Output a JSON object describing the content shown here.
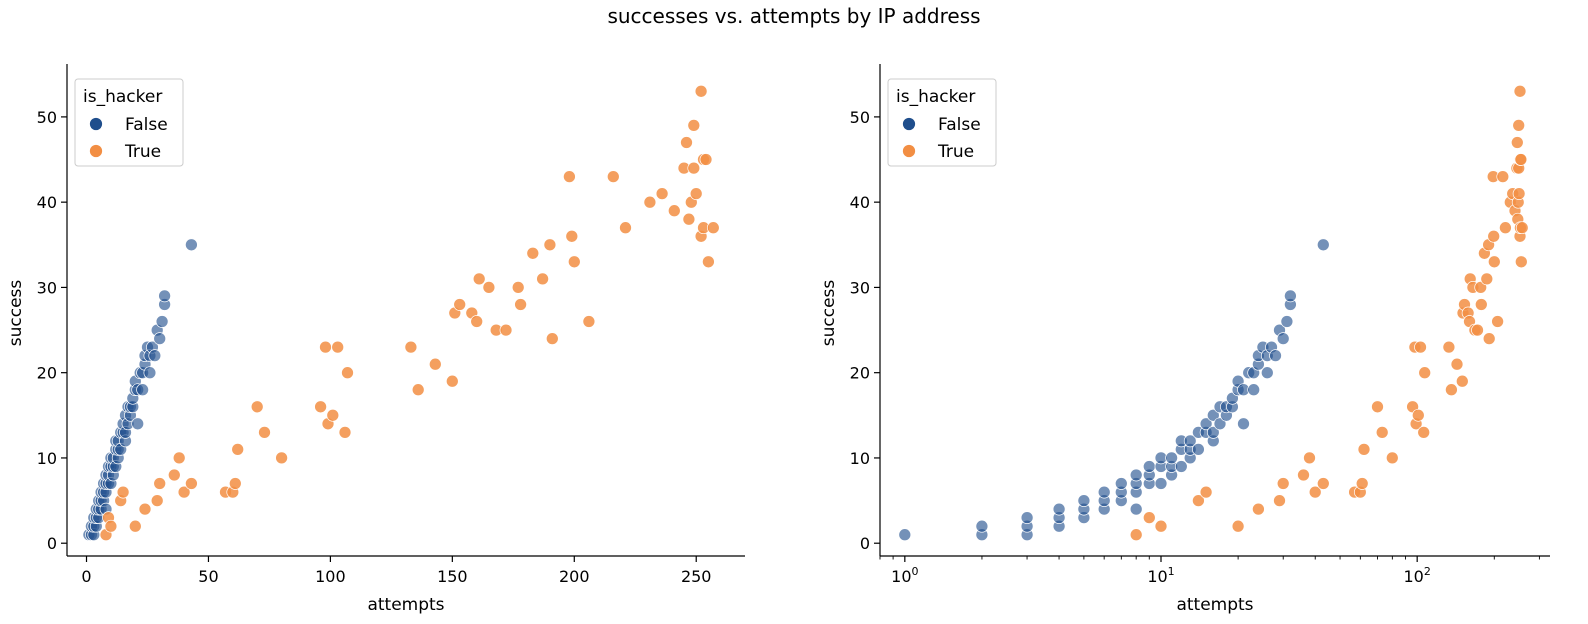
{
  "figure": {
    "title": "successes vs. attempts by IP address"
  },
  "colors": {
    "false": "#1f4e8c",
    "true": "#f28e43",
    "edge": "#ffffff"
  },
  "chart_data": [
    {
      "type": "scatter",
      "xscale": "linear",
      "xlabel": "attempts",
      "ylabel": "success",
      "xlim": [
        -8,
        270
      ],
      "ylim": [
        -1.5,
        55.5
      ],
      "xticks": [
        0,
        50,
        100,
        150,
        200,
        250
      ],
      "xtick_labels": [
        "0",
        "50",
        "100",
        "150",
        "200",
        "250"
      ],
      "yticks": [
        0,
        10,
        20,
        30,
        40,
        50
      ],
      "ytick_labels": [
        "0",
        "10",
        "20",
        "30",
        "40",
        "50"
      ],
      "legend": {
        "title": "is_hacker",
        "placement": "upper-left",
        "entries": [
          "False",
          "True"
        ]
      },
      "series": [
        {
          "name": "False",
          "points": [
            [
              1,
              1
            ],
            [
              2,
              1
            ],
            [
              2,
              2
            ],
            [
              3,
              1
            ],
            [
              3,
              2
            ],
            [
              3,
              3
            ],
            [
              4,
              2
            ],
            [
              4,
              3
            ],
            [
              4,
              4
            ],
            [
              5,
              3
            ],
            [
              5,
              4
            ],
            [
              5,
              5
            ],
            [
              6,
              4
            ],
            [
              6,
              5
            ],
            [
              6,
              6
            ],
            [
              7,
              5
            ],
            [
              7,
              6
            ],
            [
              7,
              7
            ],
            [
              8,
              4
            ],
            [
              8,
              6
            ],
            [
              8,
              7
            ],
            [
              8,
              8
            ],
            [
              9,
              7
            ],
            [
              9,
              8
            ],
            [
              9,
              9
            ],
            [
              10,
              7
            ],
            [
              10,
              9
            ],
            [
              10,
              10
            ],
            [
              11,
              8
            ],
            [
              11,
              9
            ],
            [
              11,
              10
            ],
            [
              12,
              9
            ],
            [
              12,
              11
            ],
            [
              12,
              12
            ],
            [
              13,
              10
            ],
            [
              13,
              11
            ],
            [
              13,
              12
            ],
            [
              14,
              11
            ],
            [
              14,
              13
            ],
            [
              15,
              13
            ],
            [
              15,
              14
            ],
            [
              16,
              12
            ],
            [
              16,
              13
            ],
            [
              16,
              15
            ],
            [
              17,
              14
            ],
            [
              17,
              16
            ],
            [
              18,
              15
            ],
            [
              18,
              16
            ],
            [
              19,
              16
            ],
            [
              19,
              17
            ],
            [
              20,
              18
            ],
            [
              20,
              19
            ],
            [
              21,
              14
            ],
            [
              21,
              18
            ],
            [
              22,
              20
            ],
            [
              23,
              18
            ],
            [
              23,
              20
            ],
            [
              24,
              21
            ],
            [
              24,
              22
            ],
            [
              25,
              23
            ],
            [
              26,
              20
            ],
            [
              26,
              22
            ],
            [
              27,
              23
            ],
            [
              28,
              22
            ],
            [
              29,
              25
            ],
            [
              30,
              24
            ],
            [
              31,
              26
            ],
            [
              32,
              28
            ],
            [
              32,
              29
            ],
            [
              43,
              35
            ]
          ]
        },
        {
          "name": "True",
          "points": [
            [
              8,
              1
            ],
            [
              9,
              3
            ],
            [
              10,
              2
            ],
            [
              14,
              5
            ],
            [
              15,
              6
            ],
            [
              20,
              2
            ],
            [
              24,
              4
            ],
            [
              29,
              5
            ],
            [
              30,
              7
            ],
            [
              36,
              8
            ],
            [
              38,
              10
            ],
            [
              40,
              6
            ],
            [
              43,
              7
            ],
            [
              57,
              6
            ],
            [
              60,
              6
            ],
            [
              61,
              7
            ],
            [
              62,
              11
            ],
            [
              70,
              16
            ],
            [
              73,
              13
            ],
            [
              80,
              10
            ],
            [
              96,
              16
            ],
            [
              98,
              23
            ],
            [
              99,
              14
            ],
            [
              101,
              15
            ],
            [
              103,
              23
            ],
            [
              106,
              13
            ],
            [
              107,
              20
            ],
            [
              133,
              23
            ],
            [
              136,
              18
            ],
            [
              143,
              21
            ],
            [
              150,
              19
            ],
            [
              151,
              27
            ],
            [
              153,
              28
            ],
            [
              158,
              27
            ],
            [
              160,
              26
            ],
            [
              161,
              31
            ],
            [
              165,
              30
            ],
            [
              168,
              25
            ],
            [
              172,
              25
            ],
            [
              177,
              30
            ],
            [
              178,
              28
            ],
            [
              183,
              34
            ],
            [
              187,
              31
            ],
            [
              190,
              35
            ],
            [
              191,
              24
            ],
            [
              198,
              43
            ],
            [
              199,
              36
            ],
            [
              200,
              33
            ],
            [
              206,
              26
            ],
            [
              216,
              43
            ],
            [
              221,
              37
            ],
            [
              231,
              40
            ],
            [
              236,
              41
            ],
            [
              241,
              39
            ],
            [
              245,
              44
            ],
            [
              246,
              47
            ],
            [
              247,
              38
            ],
            [
              248,
              40
            ],
            [
              249,
              49
            ],
            [
              249,
              44
            ],
            [
              250,
              41
            ],
            [
              252,
              53
            ],
            [
              252,
              36
            ],
            [
              253,
              37
            ],
            [
              253,
              45
            ],
            [
              254,
              45
            ],
            [
              255,
              33
            ],
            [
              257,
              37
            ]
          ]
        }
      ]
    },
    {
      "type": "scatter",
      "xscale": "log",
      "xlabel": "attempts",
      "ylabel": "success",
      "xlim": [
        0.8,
        330
      ],
      "ylim": [
        -1.5,
        55.5
      ],
      "xticks": [
        1,
        10,
        100
      ],
      "xtick_labels": [
        "10⁰",
        "10¹",
        "10²"
      ],
      "yticks": [
        0,
        10,
        20,
        30,
        40,
        50
      ],
      "ytick_labels": [
        "0",
        "10",
        "20",
        "30",
        "40",
        "50"
      ],
      "legend": {
        "title": "is_hacker",
        "placement": "upper-left",
        "entries": [
          "False",
          "True"
        ]
      },
      "series": [
        {
          "name": "False",
          "points": [
            [
              1,
              1
            ],
            [
              2,
              1
            ],
            [
              2,
              2
            ],
            [
              3,
              1
            ],
            [
              3,
              2
            ],
            [
              3,
              3
            ],
            [
              4,
              2
            ],
            [
              4,
              3
            ],
            [
              4,
              4
            ],
            [
              5,
              3
            ],
            [
              5,
              4
            ],
            [
              5,
              5
            ],
            [
              6,
              4
            ],
            [
              6,
              5
            ],
            [
              6,
              6
            ],
            [
              7,
              5
            ],
            [
              7,
              6
            ],
            [
              7,
              7
            ],
            [
              8,
              4
            ],
            [
              8,
              6
            ],
            [
              8,
              7
            ],
            [
              8,
              8
            ],
            [
              9,
              7
            ],
            [
              9,
              8
            ],
            [
              9,
              9
            ],
            [
              10,
              7
            ],
            [
              10,
              9
            ],
            [
              10,
              10
            ],
            [
              11,
              8
            ],
            [
              11,
              9
            ],
            [
              11,
              10
            ],
            [
              12,
              9
            ],
            [
              12,
              11
            ],
            [
              12,
              12
            ],
            [
              13,
              10
            ],
            [
              13,
              11
            ],
            [
              13,
              12
            ],
            [
              14,
              11
            ],
            [
              14,
              13
            ],
            [
              15,
              13
            ],
            [
              15,
              14
            ],
            [
              16,
              12
            ],
            [
              16,
              13
            ],
            [
              16,
              15
            ],
            [
              17,
              14
            ],
            [
              17,
              16
            ],
            [
              18,
              15
            ],
            [
              18,
              16
            ],
            [
              19,
              16
            ],
            [
              19,
              17
            ],
            [
              20,
              18
            ],
            [
              20,
              19
            ],
            [
              21,
              14
            ],
            [
              21,
              18
            ],
            [
              22,
              20
            ],
            [
              23,
              18
            ],
            [
              23,
              20
            ],
            [
              24,
              21
            ],
            [
              24,
              22
            ],
            [
              25,
              23
            ],
            [
              26,
              20
            ],
            [
              26,
              22
            ],
            [
              27,
              23
            ],
            [
              28,
              22
            ],
            [
              29,
              25
            ],
            [
              30,
              24
            ],
            [
              31,
              26
            ],
            [
              32,
              28
            ],
            [
              32,
              29
            ],
            [
              43,
              35
            ]
          ]
        },
        {
          "name": "True",
          "points": [
            [
              8,
              1
            ],
            [
              9,
              3
            ],
            [
              10,
              2
            ],
            [
              14,
              5
            ],
            [
              15,
              6
            ],
            [
              20,
              2
            ],
            [
              24,
              4
            ],
            [
              29,
              5
            ],
            [
              30,
              7
            ],
            [
              36,
              8
            ],
            [
              38,
              10
            ],
            [
              40,
              6
            ],
            [
              43,
              7
            ],
            [
              57,
              6
            ],
            [
              60,
              6
            ],
            [
              61,
              7
            ],
            [
              62,
              11
            ],
            [
              70,
              16
            ],
            [
              73,
              13
            ],
            [
              80,
              10
            ],
            [
              96,
              16
            ],
            [
              98,
              23
            ],
            [
              99,
              14
            ],
            [
              101,
              15
            ],
            [
              103,
              23
            ],
            [
              106,
              13
            ],
            [
              107,
              20
            ],
            [
              133,
              23
            ],
            [
              136,
              18
            ],
            [
              143,
              21
            ],
            [
              150,
              19
            ],
            [
              151,
              27
            ],
            [
              153,
              28
            ],
            [
              158,
              27
            ],
            [
              160,
              26
            ],
            [
              161,
              31
            ],
            [
              165,
              30
            ],
            [
              168,
              25
            ],
            [
              172,
              25
            ],
            [
              177,
              30
            ],
            [
              178,
              28
            ],
            [
              183,
              34
            ],
            [
              187,
              31
            ],
            [
              190,
              35
            ],
            [
              191,
              24
            ],
            [
              198,
              43
            ],
            [
              199,
              36
            ],
            [
              200,
              33
            ],
            [
              206,
              26
            ],
            [
              216,
              43
            ],
            [
              221,
              37
            ],
            [
              231,
              40
            ],
            [
              236,
              41
            ],
            [
              241,
              39
            ],
            [
              245,
              44
            ],
            [
              246,
              47
            ],
            [
              247,
              38
            ],
            [
              248,
              40
            ],
            [
              249,
              49
            ],
            [
              249,
              44
            ],
            [
              250,
              41
            ],
            [
              252,
              53
            ],
            [
              252,
              36
            ],
            [
              253,
              37
            ],
            [
              253,
              45
            ],
            [
              254,
              45
            ],
            [
              255,
              33
            ],
            [
              257,
              37
            ]
          ]
        }
      ]
    }
  ]
}
